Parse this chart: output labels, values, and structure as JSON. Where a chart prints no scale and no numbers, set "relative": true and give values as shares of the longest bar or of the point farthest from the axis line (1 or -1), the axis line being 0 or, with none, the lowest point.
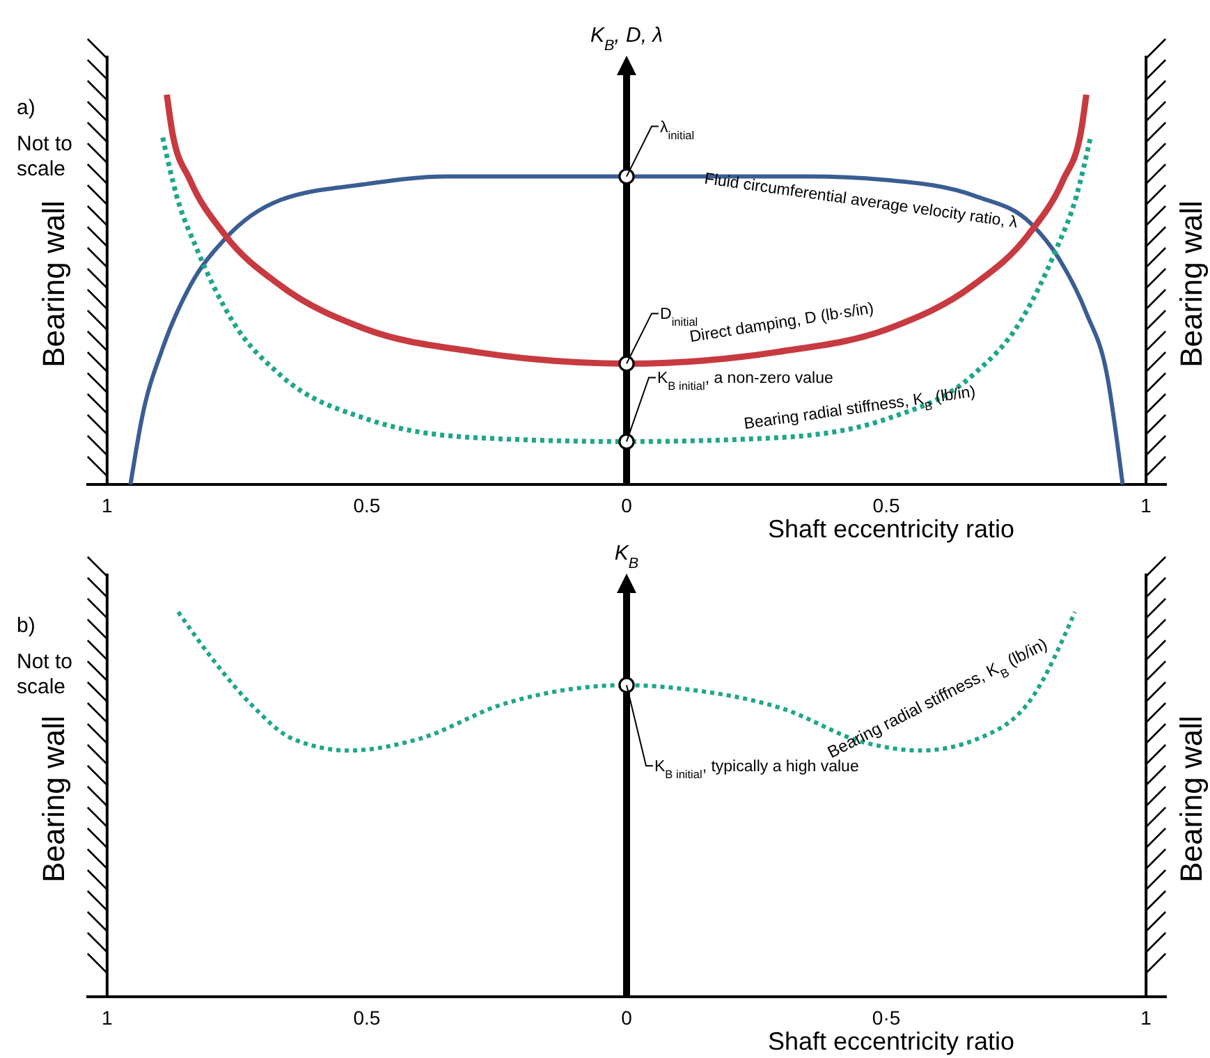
{
  "chart_data": [
    {
      "type": "line",
      "relative": true,
      "tick_labels": "x",
      "ylabel": "K$_{B}$, D, λ",
      "xlabel": "Shaft eccentricity ratio",
      "xlim": [
        -1.04,
        1.04
      ],
      "xticks": [
        {
          "value": -1,
          "label": "1"
        },
        {
          "value": -0.5,
          "label": "0.5"
        },
        0,
        {
          "value": 0.5,
          "label": "0.5"
        },
        {
          "value": 1,
          "label": "1"
        }
      ],
      "series": [
        {
          "color": "#3a5d93",
          "line_style": "solid",
          "x": [
            -0.955,
            -0.933,
            -0.893,
            -0.84,
            -0.773,
            -0.666,
            -0.505,
            -0.345,
            0,
            0.35,
            0.51,
            0.671,
            0.778,
            0.832,
            0.885,
            0.925,
            0.955
          ],
          "values": [
            0,
            0.17,
            0.35,
            0.51,
            0.63,
            0.73,
            0.77,
            0.79,
            0.79,
            0.79,
            0.78,
            0.74,
            0.67,
            0.58,
            0.44,
            0.28,
            0
          ]
        },
        {
          "color": "#c73a40",
          "line_style": "solid",
          "x": [
            -0.885,
            -0.874,
            -0.84,
            -0.773,
            -0.666,
            -0.505,
            -0.291,
            0,
            0.291,
            0.505,
            0.666,
            0.773,
            0.84,
            0.874,
            0.885
          ],
          "values": [
            1,
            0.9,
            0.78,
            0.64,
            0.51,
            0.4,
            0.34,
            0.31,
            0.34,
            0.4,
            0.51,
            0.64,
            0.78,
            0.9,
            1
          ]
        },
        {
          "color": "#1fa68a",
          "line_style": "dotted",
          "x": [
            -0.893,
            -0.866,
            -0.826,
            -0.759,
            -0.666,
            -0.505,
            -0.291,
            0,
            0.291,
            0.505,
            0.666,
            0.759,
            0.826,
            0.866,
            0.893
          ],
          "values": [
            0.89,
            0.74,
            0.6,
            0.42,
            0.28,
            0.17,
            0.12,
            0.11,
            0.12,
            0.17,
            0.28,
            0.42,
            0.6,
            0.74,
            0.89
          ]
        },
        {
          "type": "scatter",
          "marker": "circle",
          "color": "#000000",
          "x": [
            0,
            0,
            0
          ],
          "values": [
            0.79,
            0.31,
            0.11
          ]
        }
      ],
      "annotations": [
        "a)",
        "Not to scale",
        "Bearing wall",
        "Bearing wall",
        {
          "text": "λ$_{initial}$",
          "x": 0,
          "y": 0.79
        },
        {
          "text": "Fluid circumferential average velocity ratio, λ",
          "x": 0.45,
          "y": 0.78
        },
        {
          "text": "D$_{initial}$",
          "x": 0,
          "y": 0.31
        },
        {
          "text": "Direct damping, D (lb·s/in)",
          "x": 0.3,
          "y": 0.36
        },
        {
          "text": "K$_{B initial}$, a non-zero value",
          "x": 0,
          "y": 0.11
        },
        {
          "text": "Bearing radial stiffness, K$_{B}$ (lb/in)",
          "x": 0.45,
          "y": 0.17
        }
      ]
    },
    {
      "type": "line",
      "relative": true,
      "tick_labels": "x",
      "ylabel": "K$_{B}$",
      "xlabel": "Shaft eccentricity ratio",
      "xlim": [
        -1.04,
        1.04
      ],
      "xticks": [
        {
          "value": -1,
          "label": "1"
        },
        {
          "value": -0.5,
          "label": "0.5"
        },
        0,
        {
          "value": 0.5,
          "label": "0·5"
        },
        {
          "value": 1,
          "label": "1"
        }
      ],
      "series": [
        {
          "color": "#1fa68a",
          "line_style": "dotted",
          "x": [
            -0.863,
            -0.804,
            -0.723,
            -0.642,
            -0.535,
            -0.4,
            -0.239,
            -0.105,
            0,
            0.11,
            0.298,
            0.46,
            0.567,
            0.675,
            0.782,
            0.863
          ],
          "values": [
            1,
            0.89,
            0.76,
            0.67,
            0.64,
            0.67,
            0.76,
            0.8,
            0.81,
            0.8,
            0.75,
            0.66,
            0.64,
            0.67,
            0.78,
            1
          ]
        },
        {
          "type": "scatter",
          "marker": "circle",
          "color": "#000000",
          "x": [
            0
          ],
          "values": [
            0.81
          ]
        }
      ],
      "annotations": [
        "b)",
        "Not to scale",
        "Bearing wall",
        "Bearing wall",
        "Bearing radial stiffness, K$_{B}$ (lb/in)",
        {
          "text": "K$_{B initial}$, typically a high value",
          "x": 0,
          "y": 0.81
        }
      ]
    }
  ]
}
